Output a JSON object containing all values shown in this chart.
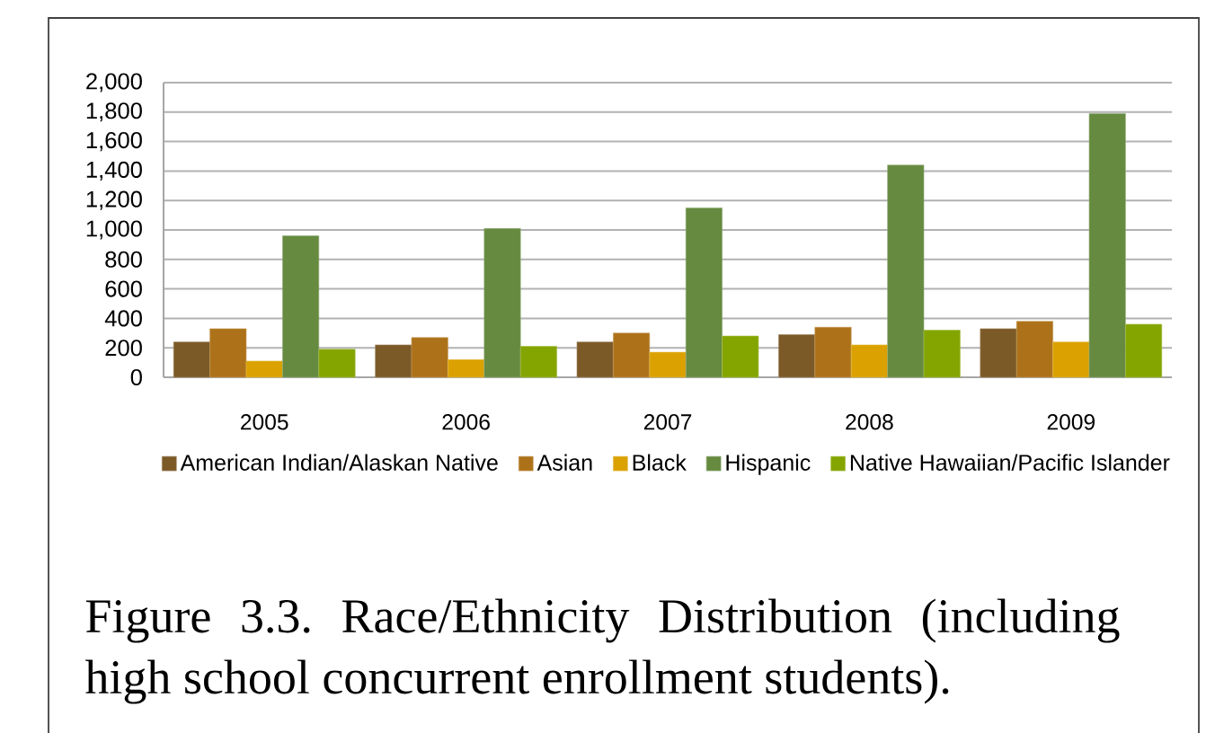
{
  "chart_data": {
    "type": "bar",
    "categories": [
      "2005",
      "2006",
      "2007",
      "2008",
      "2009"
    ],
    "series": [
      {
        "name": "American Indian/Alaskan Native",
        "color": "#7c5a27",
        "values": [
          240,
          220,
          240,
          290,
          330
        ]
      },
      {
        "name": "Asian",
        "color": "#ad7219",
        "values": [
          330,
          270,
          300,
          340,
          380
        ]
      },
      {
        "name": "Black",
        "color": "#dba100",
        "values": [
          110,
          120,
          170,
          220,
          240
        ]
      },
      {
        "name": "Hispanic",
        "color": "#658a40",
        "values": [
          960,
          1010,
          1150,
          1440,
          1790
        ]
      },
      {
        "name": "Native Hawaiian/Pacific Islander",
        "color": "#84a500",
        "values": [
          190,
          210,
          280,
          320,
          360
        ]
      }
    ],
    "ylim": [
      0,
      2000
    ],
    "yticks": [
      0,
      200,
      400,
      600,
      800,
      {
        "value": 1000,
        "label": "1,000"
      },
      {
        "value": 1200,
        "label": "1,200"
      },
      {
        "value": 1400,
        "label": "1,400"
      },
      {
        "value": 1600,
        "label": "1,600"
      },
      {
        "value": 1800,
        "label": "1,800"
      },
      {
        "value": 2000,
        "label": "2,000"
      }
    ],
    "grid": "y",
    "legend": "bottom",
    "annotations": [
      "Figure 3.3. Race/Ethnicity Distribution (including high school concurrent enrollment students)."
    ]
  }
}
